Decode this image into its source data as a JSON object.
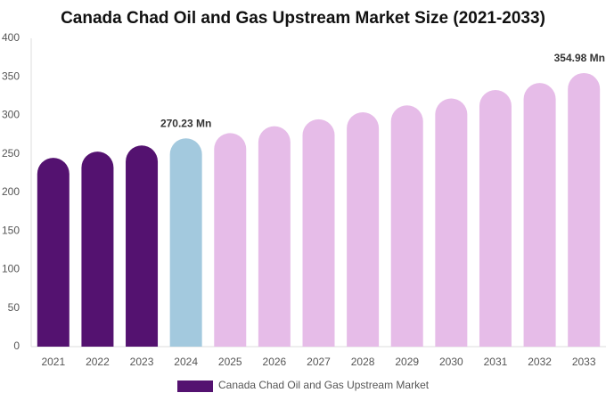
{
  "chart_data": {
    "type": "bar",
    "title": "Canada Chad Oil and Gas Upstream Market Size (2021-2033)",
    "categories": [
      "2021",
      "2022",
      "2023",
      "2024",
      "2025",
      "2026",
      "2027",
      "2028",
      "2029",
      "2030",
      "2031",
      "2032",
      "2033"
    ],
    "series": [
      {
        "name": "Canada Chad Oil and Gas Upstream Market",
        "color": "#541270",
        "values": [
          245,
          253,
          261,
          270.23,
          277,
          286,
          295,
          304,
          313,
          322,
          333,
          342,
          354.98
        ],
        "value_labels": [
          null,
          null,
          null,
          "270.23 Mn",
          null,
          null,
          null,
          null,
          null,
          null,
          null,
          null,
          "354.98 Mn"
        ],
        "colors": [
          "#541270",
          "#541270",
          "#541270",
          "#a3c9de",
          "#e6bce8",
          "#e6bce8",
          "#e6bce8",
          "#e6bce8",
          "#e6bce8",
          "#e6bce8",
          "#e6bce8",
          "#e6bce8",
          "#e6bce8"
        ]
      }
    ],
    "ylim": [
      0,
      400
    ],
    "yticks": [
      0,
      50,
      100,
      150,
      200,
      250,
      300,
      350,
      400
    ],
    "grid": false
  }
}
